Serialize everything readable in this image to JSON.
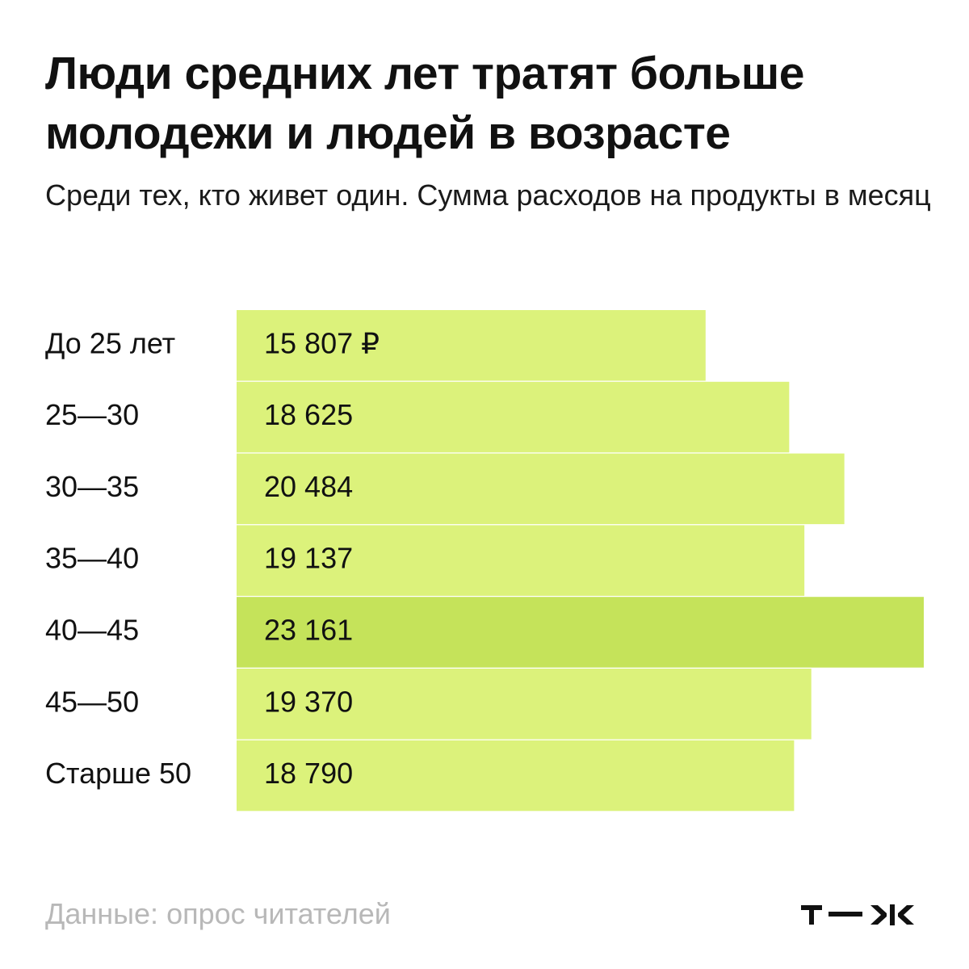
{
  "header": {
    "title": "Люди средних лет тратят больше молодежи и людей в возрасте",
    "subtitle": "Среди тех, кто живет один. Сумма расходов на продукты в месяц"
  },
  "footer": {
    "source": "Данные: опрос читателей",
    "logo_text": "т—ж"
  },
  "colors": {
    "bar": "#dcf27b",
    "bar_highlight": "#c5e35a",
    "text": "#111111",
    "muted": "#b8b8b8"
  },
  "chart_data": {
    "type": "bar",
    "orientation": "horizontal",
    "categories": [
      "До 25 лет",
      "25—30",
      "30—35",
      "35—40",
      "40—45",
      "45—50",
      "Старше 50"
    ],
    "values": [
      15807,
      18625,
      20484,
      19137,
      23161,
      19370,
      18790
    ],
    "value_labels": [
      "15 807 ₽",
      "18 625",
      "20 484",
      "19 137",
      "23 161",
      "19 370",
      "18 790"
    ],
    "highlight_index": 4,
    "xlim": [
      0,
      23161
    ],
    "grid": false,
    "legend": "none"
  }
}
